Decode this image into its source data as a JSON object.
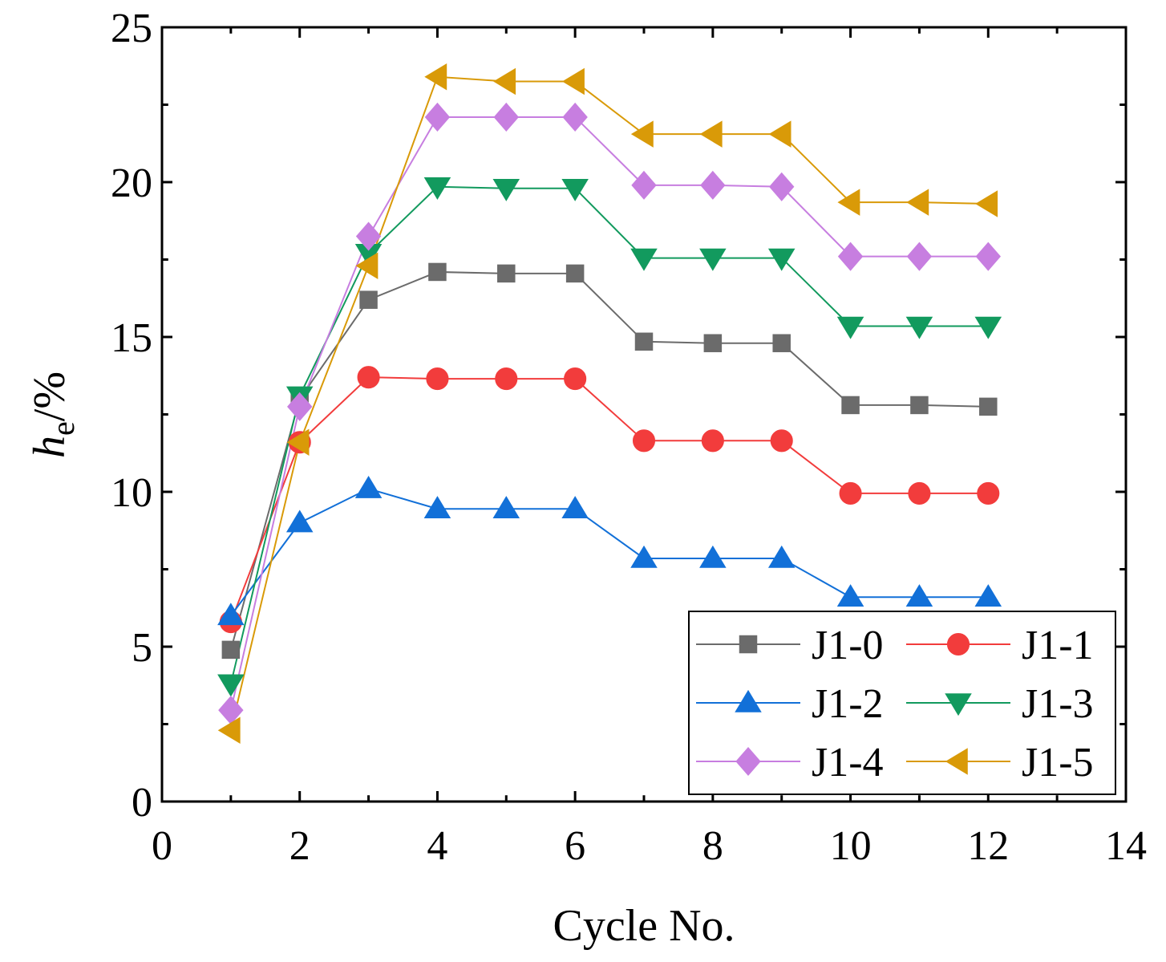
{
  "chart_data": {
    "type": "line",
    "title": "",
    "xlabel": "Cycle No.",
    "ylabel": {
      "main": "h",
      "subscript": "e",
      "suffix": "/%"
    },
    "xlim": [
      0,
      14
    ],
    "ylim": [
      0,
      25
    ],
    "xticks": [
      0,
      2,
      4,
      6,
      8,
      10,
      12,
      14
    ],
    "yticks": [
      0,
      5,
      10,
      15,
      20,
      25
    ],
    "grid": false,
    "legend_position": "bottom-right",
    "x": [
      1,
      2,
      3,
      4,
      5,
      6,
      7,
      8,
      9,
      10,
      11,
      12
    ],
    "series": [
      {
        "name": "J1-0",
        "color": "#6b6b6b",
        "marker": "square",
        "values": [
          4.9,
          13.0,
          16.2,
          17.1,
          17.05,
          17.05,
          14.85,
          14.8,
          14.8,
          12.8,
          12.8,
          12.75
        ]
      },
      {
        "name": "J1-1",
        "color": "#f23c3c",
        "marker": "circle",
        "values": [
          5.8,
          11.6,
          13.7,
          13.65,
          13.65,
          13.65,
          11.65,
          11.65,
          11.65,
          9.95,
          9.95,
          9.95
        ]
      },
      {
        "name": "J1-2",
        "color": "#1270d8",
        "marker": "triangle-up",
        "values": [
          6.0,
          9.0,
          10.1,
          9.45,
          9.45,
          9.45,
          7.85,
          7.85,
          7.85,
          6.6,
          6.6,
          6.6
        ]
      },
      {
        "name": "J1-3",
        "color": "#129a5e",
        "marker": "triangle-down",
        "values": [
          3.8,
          13.1,
          17.7,
          19.85,
          19.8,
          19.8,
          17.55,
          17.55,
          17.55,
          15.35,
          15.35,
          15.35
        ]
      },
      {
        "name": "J1-4",
        "color": "#c77ee0",
        "marker": "diamond",
        "values": [
          2.95,
          12.75,
          18.25,
          22.1,
          22.1,
          22.1,
          19.9,
          19.9,
          19.85,
          17.6,
          17.6,
          17.6
        ]
      },
      {
        "name": "J1-5",
        "color": "#d99a08",
        "marker": "triangle-left",
        "values": [
          2.3,
          11.6,
          17.3,
          23.4,
          23.25,
          23.25,
          21.55,
          21.55,
          21.55,
          19.35,
          19.35,
          19.3
        ]
      }
    ]
  }
}
